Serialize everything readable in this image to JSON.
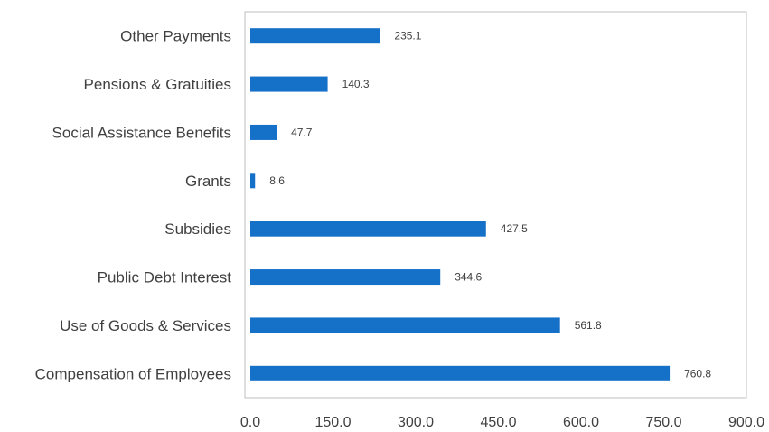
{
  "chart_data": {
    "type": "bar",
    "orientation": "horizontal",
    "title": "",
    "xlabel": "",
    "ylabel": "",
    "categories": [
      "Other Payments",
      "Pensions & Gratuities",
      "Social Assistance Benefits",
      "Grants",
      "Subsidies",
      "Public Debt Interest",
      "Use of Goods & Services",
      "Compensation of Employees"
    ],
    "values": [
      235.1,
      140.3,
      47.7,
      8.6,
      427.5,
      344.6,
      561.8,
      760.8
    ],
    "value_labels": [
      "235.1",
      "140.3",
      "47.7",
      "8.6",
      "427.5",
      "344.6",
      "561.8",
      "760.8"
    ],
    "xlim": [
      0,
      900
    ],
    "xticks": [
      "0.0",
      "150.0",
      "300.0",
      "450.0",
      "600.0",
      "750.0",
      "900.0"
    ],
    "grid": false,
    "legend": "none",
    "bar_color": "#1570C8",
    "frame_color": "#BFBFBF"
  }
}
